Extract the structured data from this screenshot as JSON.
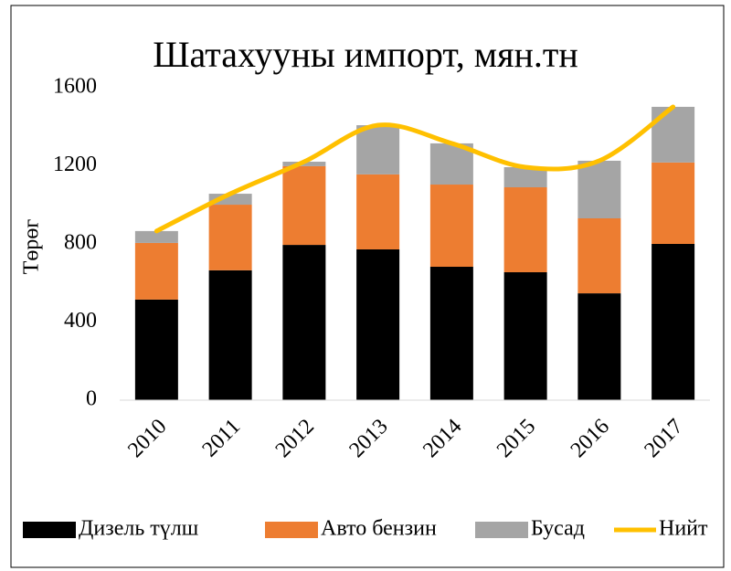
{
  "chart_data": {
    "type": "bar",
    "stacked": true,
    "title": "Шатахууны импорт, мян.тн",
    "ylabel": "Төрөг",
    "categories": [
      "2010",
      "2011",
      "2012",
      "2013",
      "2014",
      "2015",
      "2016",
      "2017"
    ],
    "series": [
      {
        "name": "Дизель түлш",
        "color": "#000000",
        "values": [
          515,
          665,
          795,
          772,
          683,
          655,
          547,
          800
        ]
      },
      {
        "name": "Авто бензин",
        "color": "#ed7d31",
        "values": [
          290,
          336,
          403,
          384,
          421,
          435,
          384,
          417
        ]
      },
      {
        "name": "Бусад",
        "color": "#a5a5a5",
        "values": [
          61,
          56,
          23,
          252,
          211,
          103,
          295,
          285
        ]
      },
      {
        "name": "Нийт",
        "color": "#ffc000",
        "type": "line",
        "smooth": true,
        "values": [
          866,
          1057,
          1221,
          1408,
          1315,
          1193,
          1226,
          1502
        ]
      }
    ],
    "ylim": [
      0,
      1600
    ],
    "yticks": [
      0,
      400,
      800,
      1200,
      1600
    ],
    "grid": false,
    "legend": "bottom"
  }
}
